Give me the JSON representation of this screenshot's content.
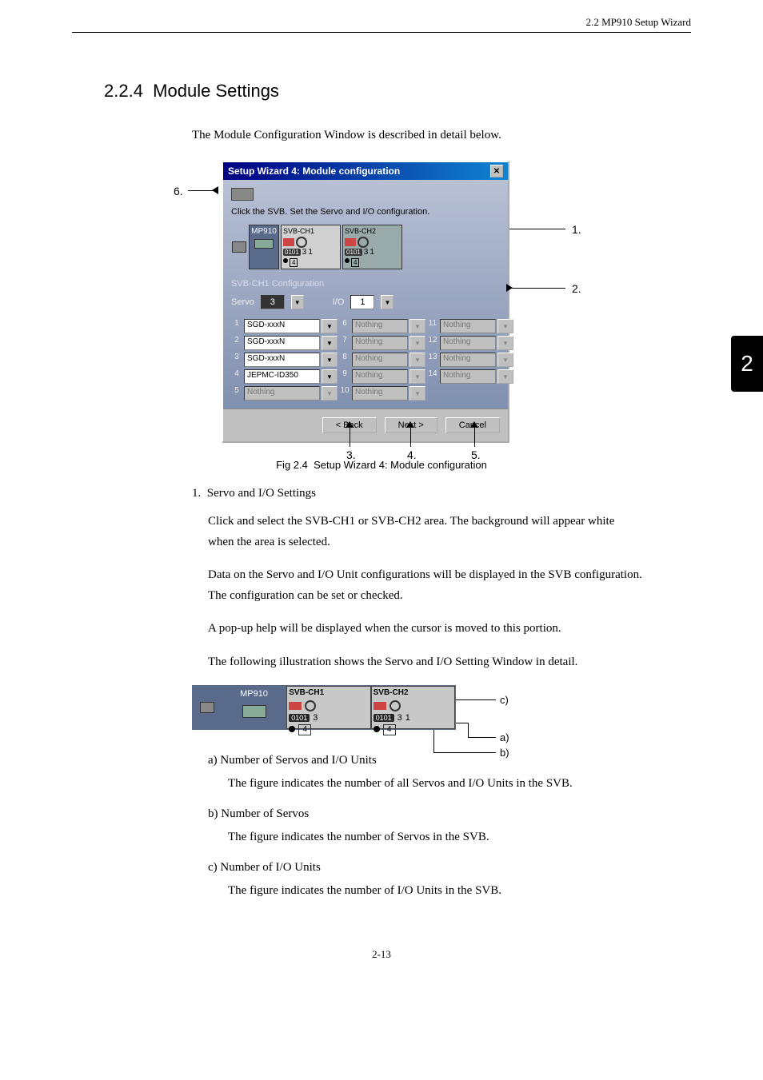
{
  "header": {
    "breadcrumb": "2.2  MP910 Setup Wizard"
  },
  "section": {
    "number": "2.2.4",
    "title": "Module Settings"
  },
  "intro": "The Module Configuration Window is described in detail below.",
  "dialog": {
    "title": "Setup Wizard  4: Module configuration",
    "instruction": "Click the SVB. Set the Servo and I/O configuration.",
    "mp_label": "MP910",
    "svb1": "SVB-CH1",
    "svb2": "SVB-CH2",
    "conf_label": "SVB-CH1 Configuration",
    "servo_label": "Servo",
    "servo_val": "3",
    "io_label": "I/O",
    "io_val": "1",
    "rows": [
      {
        "n": "1",
        "v": "SGD-xxxN",
        "en": true
      },
      {
        "n": "6",
        "v": "Nothing",
        "en": false
      },
      {
        "n": "11",
        "v": "Nothing",
        "en": false
      },
      {
        "n": "2",
        "v": "SGD-xxxN",
        "en": true
      },
      {
        "n": "7",
        "v": "Nothing",
        "en": false
      },
      {
        "n": "12",
        "v": "Nothing",
        "en": false
      },
      {
        "n": "3",
        "v": "SGD-xxxN",
        "en": true
      },
      {
        "n": "8",
        "v": "Nothing",
        "en": false
      },
      {
        "n": "13",
        "v": "Nothing",
        "en": false
      },
      {
        "n": "4",
        "v": "JEPMC-ID350",
        "en": true
      },
      {
        "n": "9",
        "v": "Nothing",
        "en": false
      },
      {
        "n": "14",
        "v": "Nothing",
        "en": false
      },
      {
        "n": "5",
        "v": "Nothing",
        "en": false
      },
      {
        "n": "10",
        "v": "Nothing",
        "en": false
      }
    ],
    "back": "< Back",
    "next": "Next >",
    "cancel": "Cancel",
    "svb_counts": {
      "ch1_servo": "3",
      "ch1_io": "1",
      "ch1_total": "4",
      "ch2_servo": "3",
      "ch2_io": "1",
      "ch2_total": "4"
    }
  },
  "callouts": {
    "c1": "1.",
    "c2": "2.",
    "c3": "3.",
    "c4": "4.",
    "c5": "5.",
    "c6": "6."
  },
  "fig_caption": "Fig 2.4  Setup Wizard 4: Module configuration",
  "list1": {
    "num": "1.",
    "title": "Servo and I/O Settings",
    "p1": "Click and select the SVB-CH1 or SVB-CH2 area. The background will appear white when the area is selected.",
    "p2": "Data on the Servo and I/O Unit configurations will be displayed in the SVB configuration. The configuration can be set or checked.",
    "p3": "A pop-up help will be displayed when the cursor is moved to this portion.",
    "p4": "The following illustration shows the Servo and I/O Setting Window in detail."
  },
  "detail": {
    "mp": "MP910",
    "svb1": "SVB-CH1",
    "svb2": "SVB-CH2",
    "chip": "0101",
    "s1": "3",
    "t1": "4",
    "s2": "3",
    "i2": "1",
    "t2": "4",
    "la": "a)",
    "lb": "b)",
    "lc": "c)"
  },
  "subs": {
    "a_t": "a) Number of Servos and I/O Units",
    "a_d": "The figure indicates the number of all Servos and I/O Units in the SVB.",
    "b_t": "b) Number of Servos",
    "b_d": "The figure indicates the number of Servos in the SVB.",
    "c_t": "c) Number of I/O Units",
    "c_d": "The figure indicates the number of I/O Units in the SVB."
  },
  "side_tab": "2",
  "page_num": "2-13"
}
